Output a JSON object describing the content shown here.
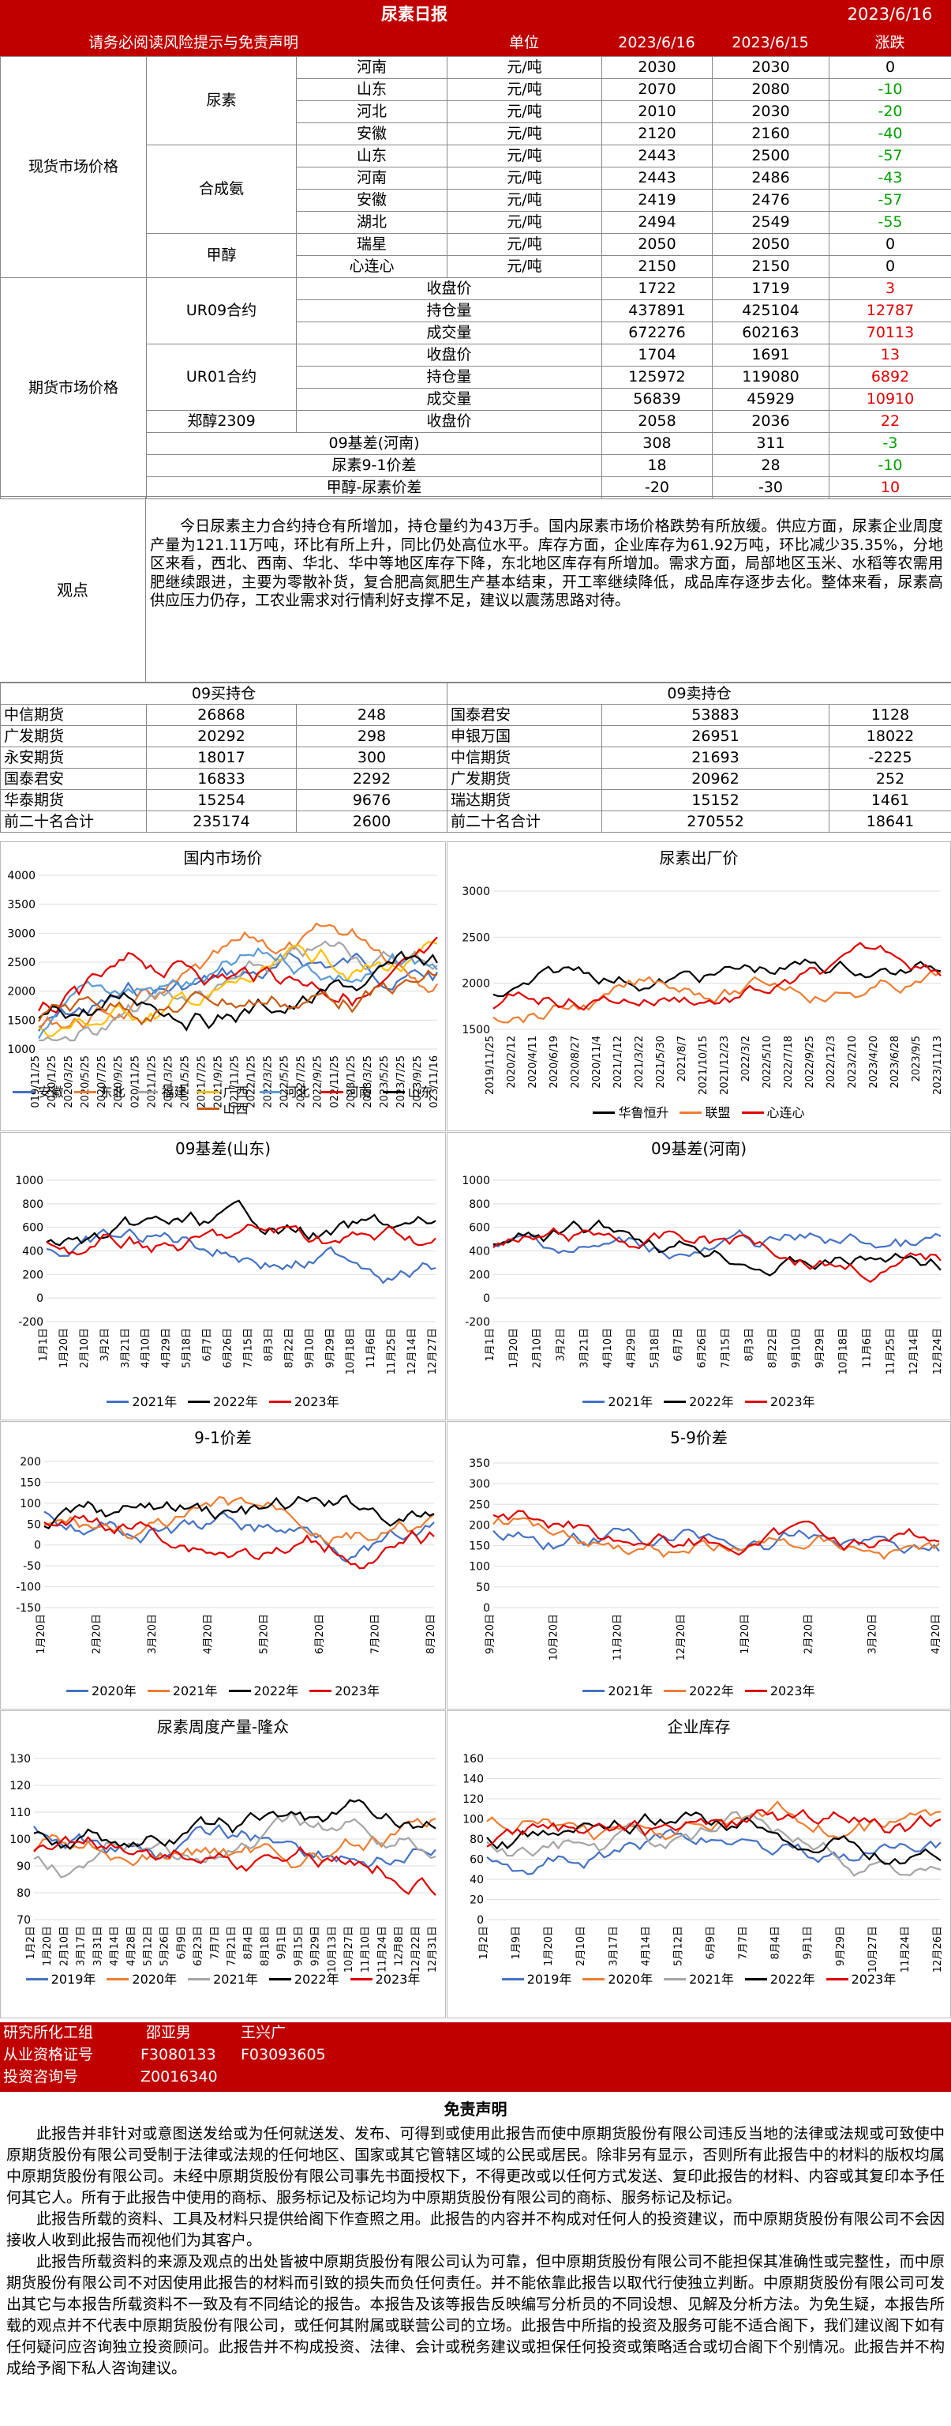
{
  "header": {
    "title": "尿素日报",
    "date": "2023/6/16"
  },
  "subheader": {
    "notice": "请务必阅读风险提示与免责声明",
    "col_unit": "单位",
    "col_d1": "2023/6/16",
    "col_d2": "2023/6/15",
    "col_chg": "涨跌"
  },
  "spot": {
    "label": "现货市场价格",
    "groups": [
      {
        "name": "尿素",
        "rows": [
          [
            "河南",
            "元/吨",
            "2030",
            "2030",
            "0"
          ],
          [
            "山东",
            "元/吨",
            "2070",
            "2080",
            "-10"
          ],
          [
            "河北",
            "元/吨",
            "2010",
            "2030",
            "-20"
          ],
          [
            "安徽",
            "元/吨",
            "2120",
            "2160",
            "-40"
          ]
        ]
      },
      {
        "name": "合成氨",
        "rows": [
          [
            "山东",
            "元/吨",
            "2443",
            "2500",
            "-57"
          ],
          [
            "河南",
            "元/吨",
            "2443",
            "2486",
            "-43"
          ],
          [
            "安徽",
            "元/吨",
            "2419",
            "2476",
            "-57"
          ],
          [
            "湖北",
            "元/吨",
            "2494",
            "2549",
            "-55"
          ]
        ]
      },
      {
        "name": "甲醇",
        "rows": [
          [
            "瑞星",
            "元/吨",
            "2050",
            "2050",
            "0"
          ],
          [
            "心连心",
            "元/吨",
            "2150",
            "2150",
            "0"
          ]
        ]
      }
    ]
  },
  "futures": {
    "label": "期货市场价格",
    "groups": [
      {
        "name": "UR09合约",
        "rows": [
          [
            "收盘价",
            "1722",
            "1719",
            "3"
          ],
          [
            "持仓量",
            "437891",
            "425104",
            "12787"
          ],
          [
            "成交量",
            "672276",
            "602163",
            "70113"
          ]
        ]
      },
      {
        "name": "UR01合约",
        "rows": [
          [
            "收盘价",
            "1704",
            "1691",
            "13"
          ],
          [
            "持仓量",
            "125972",
            "119080",
            "6892"
          ],
          [
            "成交量",
            "56839",
            "45929",
            "10910"
          ]
        ]
      },
      {
        "name": "郑醇2309",
        "rows": [
          [
            "收盘价",
            "2058",
            "2036",
            "22"
          ]
        ]
      }
    ],
    "spreads": [
      [
        "09基差(河南)",
        "308",
        "311",
        "-3"
      ],
      [
        "尿素9-1价差",
        "18",
        "28",
        "-10"
      ],
      [
        "甲醇-尿素价差",
        "-20",
        "-30",
        "10"
      ]
    ]
  },
  "observation": {
    "label": "观点",
    "text": "今日尿素主力合约持仓有所增加，持仓量约为43万手。国内尿素市场价格跌势有所放缓。供应方面，尿素企业周度产量为121.11万吨，环比有所上升，同比仍处高位水平。库存方面，企业库存为61.92万吨，环比减少35.35%，分地区来看，西北、西南、华北、华中等地区库存下降，东北地区库存有所增加。需求方面，局部地区玉米、水稻等农需用肥继续跟进，主要为零散补货，复合肥高氮肥生产基本结束，开工率继续降低，成品库存逐步去化。整体来看，尿素高供应压力仍存，工农业需求对行情利好支撑不足，建议以震荡思路对待。"
  },
  "positions": {
    "buy_title": "09买持仓",
    "sell_title": "09卖持仓",
    "rows": [
      [
        "中信期货",
        "26868",
        "248",
        "国泰君安",
        "53883",
        "1128"
      ],
      [
        "广发期货",
        "20292",
        "298",
        "申银万国",
        "26951",
        "18022"
      ],
      [
        "永安期货",
        "18017",
        "300",
        "中信期货",
        "21693",
        "-2225"
      ],
      [
        "国泰君安",
        "16833",
        "2292",
        "广发期货",
        "20962",
        "252"
      ],
      [
        "华泰期货",
        "15254",
        "9676",
        "瑞达期货",
        "15152",
        "1461"
      ],
      [
        "前二十名合计",
        "235174",
        "2600",
        "前二十名合计",
        "270552",
        "18641"
      ]
    ]
  },
  "charts": {
    "c1": {
      "title": "国内市场价",
      "yticks": [
        "4000",
        "3500",
        "3000",
        "2500",
        "2000",
        "1500",
        "1000"
      ],
      "xticks": [
        "2019/11/25",
        "2020/1/25",
        "2020/3/25",
        "2020/5/25",
        "2020/7/25",
        "2020/9/25",
        "2020/11/25",
        "2021/1/25",
        "2021/3/25",
        "2021/5/25",
        "2021/7/25",
        "2021/9/25",
        "2021/11/25",
        "2022/1/25",
        "2022/3/25",
        "2022/5/25",
        "2022/7/25",
        "2022/9/25",
        "2022/11/25",
        "2023/1/25",
        "2023/3/25",
        "2023/5/25",
        "2023/7/25",
        "2023/9/25",
        "2023/11/16"
      ],
      "legend": [
        [
          "安徽",
          "#4472c4"
        ],
        [
          "东北",
          "#ed7d31"
        ],
        [
          "福建",
          "#a5a5a5"
        ],
        [
          "广西",
          "#ffc000"
        ],
        [
          "河北",
          "#5b9bd5"
        ],
        [
          "河南",
          "#e00000"
        ],
        [
          "山东",
          "#000000"
        ],
        [
          "山西",
          "#c55a11"
        ]
      ]
    },
    "c2": {
      "title": "尿素出厂价",
      "yticks": [
        "3000",
        "2500",
        "2000",
        "1500"
      ],
      "xticks": [
        "2019/11/25",
        "2020/2/12",
        "2020/4/11",
        "2020/6/19",
        "2020/8/27",
        "2020/11/4",
        "2021/1/12",
        "2021/3/22",
        "2021/5/30",
        "2021/8/7",
        "2021/10/15",
        "2021/12/23",
        "2022/3/2",
        "2022/5/10",
        "2022/7/18",
        "2022/9/25",
        "2022/12/3",
        "2023/2/10",
        "2023/4/20",
        "2023/6/28",
        "2023/9/5",
        "2023/11/13"
      ],
      "legend": [
        [
          "华鲁恒升",
          "#000000"
        ],
        [
          "联盟",
          "#ed7d31"
        ],
        [
          "心连心",
          "#e00000"
        ]
      ]
    },
    "c3": {
      "title": "09基差(山东)",
      "yticks": [
        "1000",
        "800",
        "600",
        "400",
        "200",
        "0",
        "-200"
      ],
      "xticks": [
        "1月1日",
        "1月20日",
        "2月10日",
        "3月2日",
        "3月21日",
        "4月10日",
        "4月29日",
        "5月18日",
        "6月7日",
        "6月26日",
        "7月15日",
        "8月3日",
        "8月22日",
        "9月10日",
        "9月29日",
        "10月18日",
        "11月6日",
        "11月25日",
        "12月14日",
        "12月27日"
      ],
      "legend": [
        [
          "2021年",
          "#4472c4"
        ],
        [
          "2022年",
          "#000000"
        ],
        [
          "2023年",
          "#e00000"
        ]
      ]
    },
    "c4": {
      "title": "09基差(河南)",
      "yticks": [
        "1000",
        "800",
        "600",
        "400",
        "200",
        "0",
        "-200"
      ],
      "xticks": [
        "1月1日",
        "1月20日",
        "2月10日",
        "3月2日",
        "3月21日",
        "4月10日",
        "4月29日",
        "5月18日",
        "6月7日",
        "6月26日",
        "7月15日",
        "8月3日",
        "8月22日",
        "9月10日",
        "9月29日",
        "10月18日",
        "11月6日",
        "11月25日",
        "12月14日",
        "12月24日"
      ],
      "legend": [
        [
          "2021年",
          "#4472c4"
        ],
        [
          "2022年",
          "#000000"
        ],
        [
          "2023年",
          "#e00000"
        ]
      ]
    },
    "c5": {
      "title": "9-1价差",
      "yticks": [
        "200",
        "150",
        "100",
        "50",
        "0",
        "-50",
        "-100",
        "-150"
      ],
      "xticks": [
        "1月20日",
        "2月20日",
        "3月20日",
        "4月20日",
        "5月20日",
        "6月20日",
        "7月20日",
        "8月20日"
      ],
      "legend": [
        [
          "2020年",
          "#4472c4"
        ],
        [
          "2021年",
          "#ed7d31"
        ],
        [
          "2022年",
          "#000000"
        ],
        [
          "2023年",
          "#e00000"
        ]
      ]
    },
    "c6": {
      "title": "5-9价差",
      "yticks": [
        "350",
        "300",
        "250",
        "200",
        "150",
        "100",
        "50",
        "0"
      ],
      "xticks": [
        "9月20日",
        "10月20日",
        "11月20日",
        "12月20日",
        "1月20日",
        "2月20日",
        "3月20日",
        "4月20日"
      ],
      "legend": [
        [
          "2021年",
          "#4472c4"
        ],
        [
          "2022年",
          "#ed7d31"
        ],
        [
          "2023年",
          "#e00000"
        ]
      ]
    },
    "c7": {
      "title": "尿素周度产量-隆众",
      "yticks": [
        "130",
        "120",
        "110",
        "100",
        "90",
        "80",
        "70"
      ],
      "xticks": [
        "1月2日",
        "1月20日",
        "2月10日",
        "3月17日",
        "3月31日",
        "4月14日",
        "4月28日",
        "5月12日",
        "5月26日",
        "6月9日",
        "6月23日",
        "7月7日",
        "7月21日",
        "8月4日",
        "8月18日",
        "9月1日",
        "9月15日",
        "9月29日",
        "10月13日",
        "10月27日",
        "11月10日",
        "11月24日",
        "12月8日",
        "12月22日",
        "12月31日"
      ],
      "legend": [
        [
          "2019年",
          "#4472c4"
        ],
        [
          "2020年",
          "#ed7d31"
        ],
        [
          "2021年",
          "#a5a5a5"
        ],
        [
          "2022年",
          "#000000"
        ],
        [
          "2023年",
          "#e00000"
        ]
      ]
    },
    "c8": {
      "title": "企业库存",
      "yticks": [
        "160",
        "140",
        "120",
        "100",
        "80",
        "60",
        "40",
        "20",
        "0"
      ],
      "xticks": [
        "1月2日",
        "1月9日",
        "1月20日",
        "2月10日",
        "3月17日",
        "4月14日",
        "5月12日",
        "6月9日",
        "7月7日",
        "8月4日",
        "9月1日",
        "9月29日",
        "10月27日",
        "11月24日",
        "12月26日"
      ],
      "legend": [
        [
          "2019年",
          "#4472c4"
        ],
        [
          "2020年",
          "#ed7d31"
        ],
        [
          "2021年",
          "#a5a5a5"
        ],
        [
          "2022年",
          "#000000"
        ],
        [
          "2023年",
          "#e00000"
        ]
      ]
    }
  },
  "footer": {
    "lines": [
      [
        "研究所化工组",
        "邵亚男",
        "王兴广"
      ],
      [
        "从业资格证号",
        "F3080133",
        "F03093605"
      ],
      [
        "投资咨询号",
        "Z0016340",
        ""
      ]
    ]
  },
  "disclaimer": {
    "title": "免责声明",
    "paras": [
      "此报告并非针对或意图送发给或为任何就送发、发布、可得到或使用此报告而使中原期货股份有限公司违反当地的法律或法规或可致使中原期货股份有限公司受制于法律或法规的任何地区、国家或其它管辖区域的公民或居民。除非另有显示，否则所有此报告中的材料的版权均属中原期货股份有限公司。未经中原期货股份有限公司事先书面授权下，不得更改或以任何方式发送、复印此报告的材料、内容或其复印本予任何其它人。所有于此报告中使用的商标、服务标记及标记均为中原期货股份有限公司的商标、服务标记及标记。",
      "此报告所载的资料、工具及材料只提供给阁下作查照之用。此报告的内容并不构成对任何人的投资建议，而中原期货股份有限公司不会因接收人收到此报告而视他们为其客户。",
      "此报告所载资料的来源及观点的出处皆被中原期货股份有限公司认为可靠，但中原期货股份有限公司不能担保其准确性或完整性，而中原期货股份有限公司不对因使用此报告的材料而引致的损失而负任何责任。并不能依靠此报告以取代行使独立判断。中原期货股份有限公司可发出其它与本报告所载资料不一致及有不同结论的报告。本报告及该等报告反映编写分析员的不同设想、见解及分析方法。为免生疑，本报告所载的观点并不代表中原期货股份有限公司，或任何其附属或联营公司的立场。此报告中所指的投资及服务可能不适合阁下，我们建议阁下如有任何疑问应咨询独立投资顾问。此报告并不构成投资、法律、会计或税务建议或担保任何投资或策略适合或切合阁下个别情况。此报告并不构成给予阁下私人咨询建议。"
    ]
  }
}
